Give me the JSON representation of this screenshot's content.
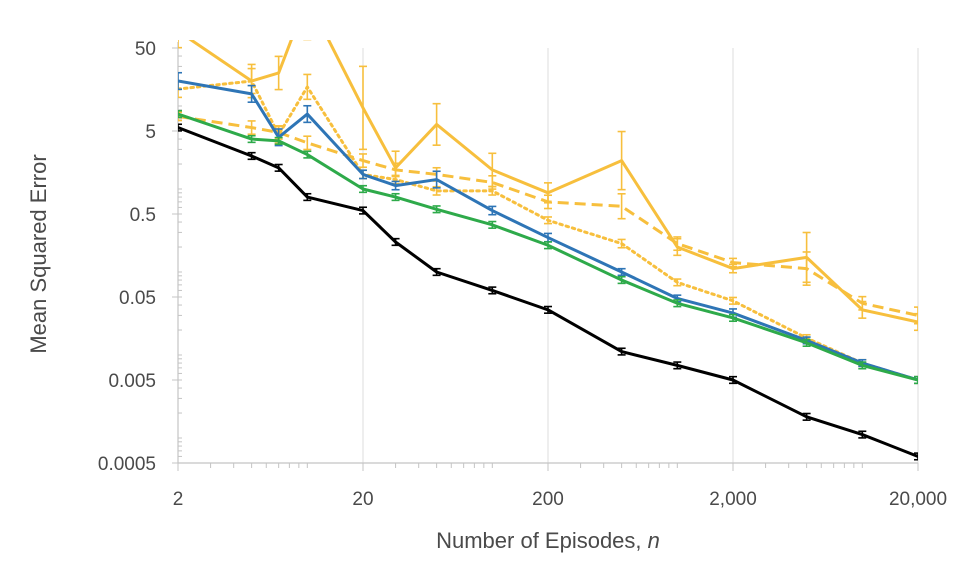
{
  "chart_data": {
    "type": "line",
    "xlabel": "Number of Episodes, ",
    "xlabel_var": "n",
    "ylabel": "Mean Squared Error",
    "x_scale": "log",
    "y_scale": "log",
    "xlim": [
      2,
      20000
    ],
    "ylim": [
      0.0005,
      50
    ],
    "x_ticks": [
      2,
      20,
      200,
      2000,
      20000
    ],
    "x_tick_labels": [
      "2",
      "20",
      "200",
      "2,000",
      "20,000"
    ],
    "y_ticks": [
      0.0005,
      0.005,
      0.05,
      0.5,
      5,
      50
    ],
    "y_tick_labels": [
      "0.0005",
      "0.005",
      "0.05",
      "0.5",
      "5",
      "50"
    ],
    "grid": "vertical",
    "x": [
      2,
      5,
      7,
      10,
      20,
      30,
      50,
      100,
      200,
      500,
      1000,
      2000,
      5000,
      10000,
      20000
    ],
    "series": [
      {
        "color": "#f7bf3d",
        "dash": "solid",
        "values": [
          80,
          20,
          25,
          200,
          9.5,
          1.8,
          6.0,
          1.7,
          0.9,
          2.2,
          0.2,
          0.11,
          0.15,
          0.035,
          0.025
        ],
        "errors": [
          0.2,
          0.2,
          0.2,
          0.5,
          0.5,
          0.2,
          0.25,
          0.2,
          0.12,
          0.35,
          0.1,
          0.05,
          0.3,
          0.1,
          0.1
        ]
      },
      {
        "color": "#f7bf3d",
        "dash": "dotted",
        "values": [
          16,
          20,
          4.5,
          17,
          1.5,
          1.3,
          0.95,
          0.95,
          0.42,
          0.22,
          0.075,
          0.045,
          0.016,
          0.008,
          0.005
        ],
        "errors": [
          0.1,
          0.15,
          0.1,
          0.15,
          0.05,
          0.05,
          0.05,
          0.05,
          0.04,
          0.05,
          0.04,
          0.04,
          0.04,
          0.04,
          0.04
        ]
      },
      {
        "color": "#f7bf3d",
        "dash": "dashed",
        "values": [
          7.5,
          5.5,
          4.8,
          3.6,
          2.2,
          1.7,
          1.5,
          1.2,
          0.7,
          0.62,
          0.22,
          0.13,
          0.11,
          0.042,
          0.03
        ],
        "errors": [
          0.05,
          0.08,
          0.08,
          0.08,
          0.08,
          0.08,
          0.08,
          0.08,
          0.08,
          0.15,
          0.08,
          0.05,
          0.2,
          0.08,
          0.1
        ]
      },
      {
        "color": "#2e75b6",
        "dash": "solid",
        "values": [
          20,
          14,
          4.2,
          8.0,
          1.5,
          1.1,
          1.3,
          0.55,
          0.26,
          0.1,
          0.048,
          0.032,
          0.015,
          0.008,
          0.005
        ],
        "errors": [
          0.1,
          0.1,
          0.1,
          0.1,
          0.05,
          0.05,
          0.1,
          0.05,
          0.05,
          0.04,
          0.04,
          0.05,
          0.04,
          0.04,
          0.04
        ]
      },
      {
        "color": "#2eaa4a",
        "dash": "solid",
        "values": [
          8.0,
          4.0,
          3.8,
          2.6,
          1.0,
          0.8,
          0.57,
          0.37,
          0.21,
          0.08,
          0.042,
          0.028,
          0.014,
          0.0075,
          0.005
        ],
        "errors": [
          0.04,
          0.04,
          0.04,
          0.04,
          0.04,
          0.04,
          0.04,
          0.04,
          0.04,
          0.04,
          0.04,
          0.04,
          0.04,
          0.04,
          0.04
        ]
      },
      {
        "color": "#000000",
        "dash": "solid",
        "values": [
          5.5,
          2.5,
          1.8,
          0.8,
          0.55,
          0.23,
          0.1,
          0.06,
          0.035,
          0.011,
          0.0075,
          0.005,
          0.0018,
          0.0011,
          0.0006
        ],
        "errors": [
          0.04,
          0.04,
          0.04,
          0.04,
          0.04,
          0.04,
          0.04,
          0.04,
          0.04,
          0.04,
          0.04,
          0.04,
          0.04,
          0.04,
          0.04
        ]
      }
    ]
  }
}
